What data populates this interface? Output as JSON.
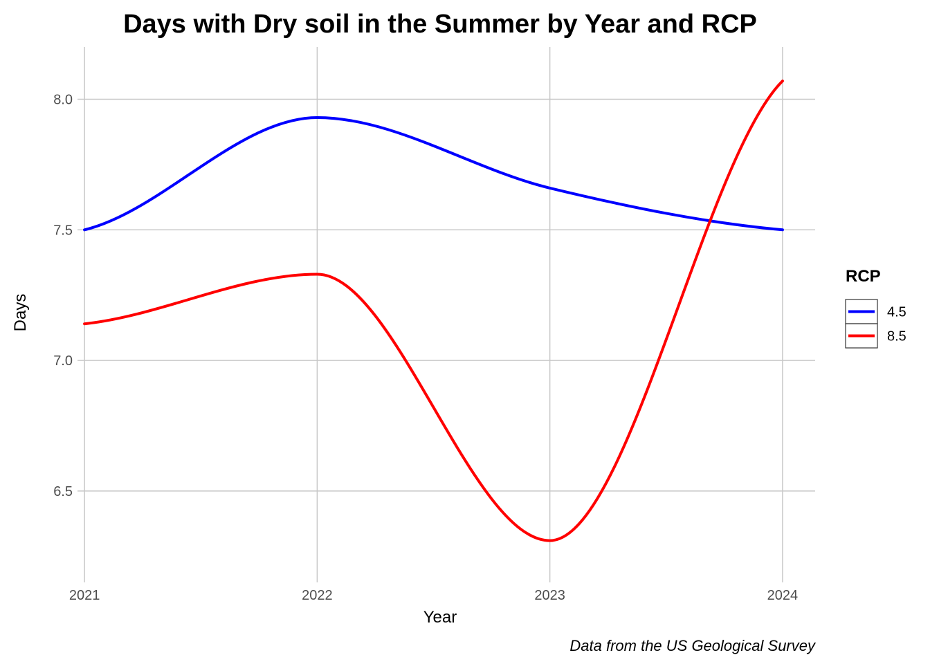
{
  "chart_data": {
    "type": "line",
    "title": "Days with Dry soil in the Summer by Year and RCP",
    "xlabel": "Year",
    "ylabel": "Days",
    "caption": "Data from the US Geological Survey",
    "x": [
      2021,
      2022,
      2023,
      2024
    ],
    "x_tick_labels": [
      "2021",
      "2022",
      "2023",
      "2024"
    ],
    "y_ticks": [
      6.5,
      7.0,
      7.5,
      8.0
    ],
    "y_tick_labels": [
      "6.5",
      "7.0",
      "7.5",
      "8.0"
    ],
    "xlim": [
      2020.97,
      2024.14
    ],
    "ylim": [
      6.15,
      8.2
    ],
    "grid": true,
    "legend": {
      "title": "RCP",
      "position": "right"
    },
    "series": [
      {
        "name": "4.5",
        "color": "#0000FF",
        "values": [
          7.5,
          7.93,
          7.66,
          7.5
        ]
      },
      {
        "name": "8.5",
        "color": "#FF0000",
        "values": [
          7.14,
          7.33,
          6.31,
          8.07
        ]
      }
    ]
  }
}
